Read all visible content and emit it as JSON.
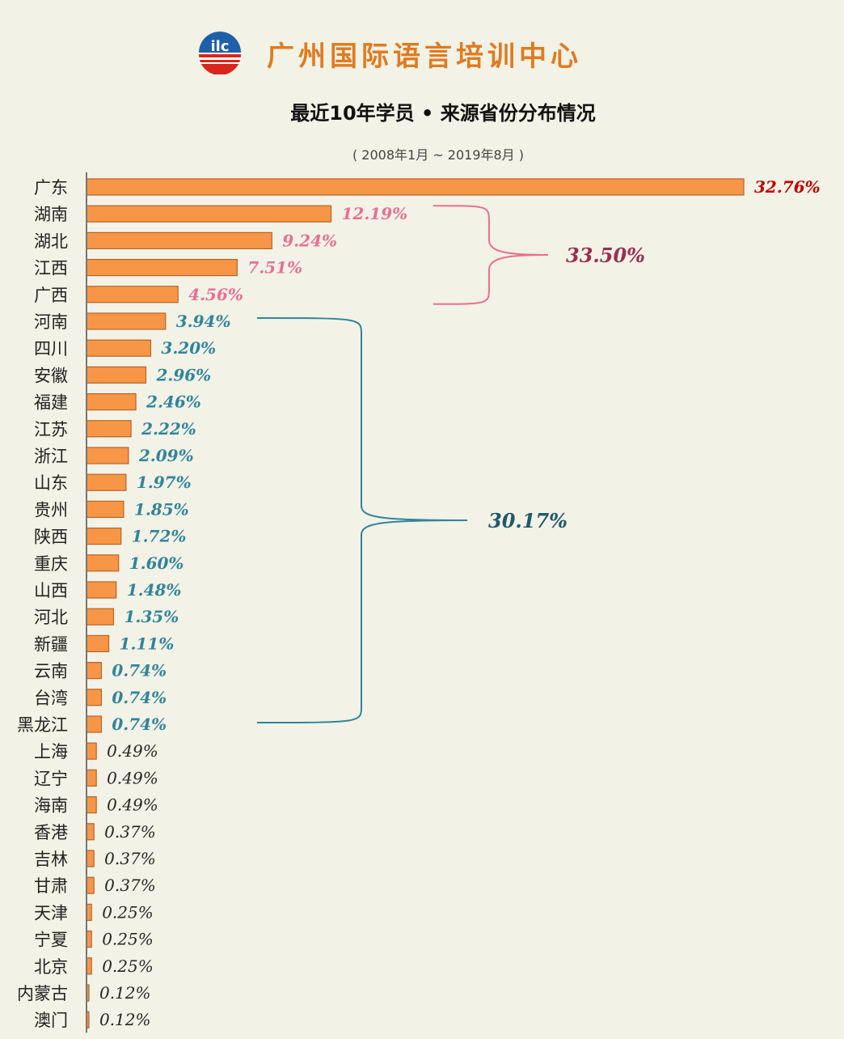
{
  "header": {
    "org_name": "广州国际语言培训中心",
    "logo_text": "ilc",
    "title": "最近10年学员 • 来源省份分布情况",
    "subtitle": "( 2008年1月 ~ 2019年8月 )"
  },
  "colors": {
    "bar_fill": "#f79646",
    "bar_stroke": "#b86428",
    "axis": "#777777",
    "label_top": "#c00000",
    "label_group1": "#e86f92",
    "label_group2": "#31849b",
    "label_rest": "#262626",
    "brace_group1": "#e86f92",
    "brace_group2": "#31849b",
    "group1_total": "#9b2d50",
    "group2_total": "#215967",
    "logo_blue": "#1f5fa8",
    "logo_red": "#d9261c"
  },
  "chart_data": {
    "type": "bar",
    "orientation": "horizontal",
    "title": "最近10年学员 • 来源省份分布情况",
    "subtitle": "( 2008年1月 ~ 2019年8月 )",
    "categories": [
      "广东",
      "湖南",
      "湖北",
      "江西",
      "广西",
      "河南",
      "四川",
      "安徽",
      "福建",
      "江苏",
      "浙江",
      "山东",
      "贵州",
      "陕西",
      "重庆",
      "山西",
      "河北",
      "新疆",
      "云南",
      "台湾",
      "黑龙江",
      "上海",
      "辽宁",
      "海南",
      "香港",
      "吉林",
      "甘肃",
      "天津",
      "宁夏",
      "北京",
      "内蒙古",
      "澳门"
    ],
    "values": [
      32.76,
      12.19,
      9.24,
      7.51,
      4.56,
      3.94,
      3.2,
      2.96,
      2.46,
      2.22,
      2.09,
      1.97,
      1.85,
      1.72,
      1.6,
      1.48,
      1.35,
      1.11,
      0.74,
      0.74,
      0.74,
      0.49,
      0.49,
      0.49,
      0.37,
      0.37,
      0.37,
      0.25,
      0.25,
      0.25,
      0.12,
      0.12
    ],
    "value_labels": [
      "32.76%",
      "12.19%",
      "9.24%",
      "7.51%",
      "4.56%",
      "3.94%",
      "3.20%",
      "2.96%",
      "2.46%",
      "2.22%",
      "2.09%",
      "1.97%",
      "1.85%",
      "1.72%",
      "1.60%",
      "1.48%",
      "1.35%",
      "1.11%",
      "0.74%",
      "0.74%",
      "0.74%",
      "0.49%",
      "0.49%",
      "0.49%",
      "0.37%",
      "0.37%",
      "0.37%",
      "0.25%",
      "0.25%",
      "0.25%",
      "0.12%",
      "0.12%"
    ],
    "xlim": [
      0,
      32.76
    ],
    "grid": false,
    "annotations": [
      {
        "label": "33.50%",
        "from_category": "湖南",
        "to_category": "广西"
      },
      {
        "label": "30.17%",
        "from_category": "河南",
        "to_category": "黑龙江"
      }
    ]
  }
}
